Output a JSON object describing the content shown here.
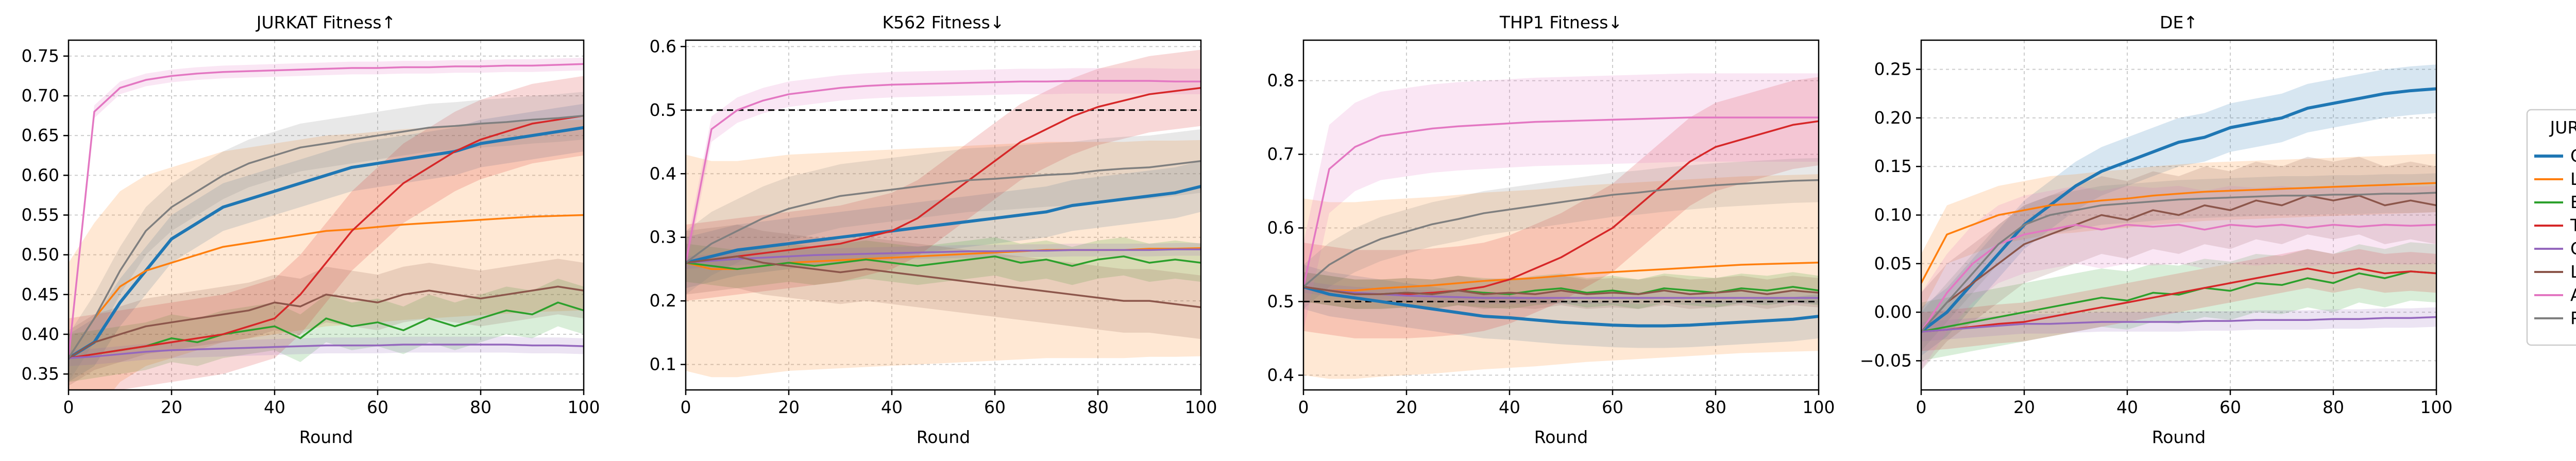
{
  "colors": {
    "Ours": "#1f77b4",
    "Log Barrier": "#ff7f0e",
    "BO": "#2ca02c",
    "TACO": "#d62728",
    "CMA-ES": "#9467bd",
    "Lag PPO": "#8c564b",
    "AdaLead": "#e377c2",
    "PEX": "#7f7f7f"
  },
  "legend": {
    "title": "JURKAT",
    "entries": [
      "Ours",
      "Log Barrier",
      "BO",
      "TACO",
      "CMA-ES",
      "Lag PPO",
      "AdaLead",
      "PEX"
    ]
  },
  "chart_data": [
    {
      "type": "line",
      "title": "JURKAT Fitness↑",
      "xlabel": "Round",
      "ylabel": "",
      "xlim": [
        0,
        100
      ],
      "ylim": [
        0.33,
        0.77
      ],
      "xticks": [
        0,
        20,
        40,
        60,
        80,
        100
      ],
      "yticks": [
        0.35,
        0.4,
        0.45,
        0.5,
        0.55,
        0.6,
        0.65,
        0.7,
        0.75
      ],
      "ytick_labels": [
        "0.35",
        "0.40",
        "0.45",
        "0.50",
        "0.55",
        "0.60",
        "0.65",
        "0.70",
        "0.75"
      ],
      "grid": true,
      "x": [
        0,
        5,
        10,
        15,
        20,
        25,
        30,
        35,
        40,
        45,
        50,
        55,
        60,
        65,
        70,
        75,
        80,
        85,
        90,
        95,
        100
      ],
      "series": [
        {
          "name": "Ours",
          "values": [
            0.37,
            0.39,
            0.44,
            0.48,
            0.52,
            0.54,
            0.56,
            0.57,
            0.58,
            0.59,
            0.6,
            0.61,
            0.615,
            0.62,
            0.625,
            0.63,
            0.64,
            0.645,
            0.65,
            0.655,
            0.66
          ],
          "band": 0.03
        },
        {
          "name": "Log Barrier",
          "values": [
            0.37,
            0.42,
            0.46,
            0.48,
            0.49,
            0.5,
            0.51,
            0.515,
            0.52,
            0.525,
            0.53,
            0.532,
            0.535,
            0.538,
            0.54,
            0.542,
            0.544,
            0.546,
            0.548,
            0.549,
            0.55
          ],
          "band": 0.12
        },
        {
          "name": "BO",
          "values": [
            0.37,
            0.375,
            0.38,
            0.385,
            0.395,
            0.39,
            0.4,
            0.405,
            0.41,
            0.395,
            0.42,
            0.41,
            0.415,
            0.405,
            0.42,
            0.41,
            0.42,
            0.43,
            0.425,
            0.44,
            0.43
          ],
          "band": 0.03
        },
        {
          "name": "TACO",
          "values": [
            0.37,
            0.375,
            0.38,
            0.385,
            0.39,
            0.395,
            0.4,
            0.41,
            0.42,
            0.45,
            0.49,
            0.53,
            0.56,
            0.59,
            0.61,
            0.63,
            0.645,
            0.655,
            0.665,
            0.67,
            0.675
          ],
          "band": 0.05
        },
        {
          "name": "CMA-ES",
          "values": [
            0.37,
            0.372,
            0.375,
            0.378,
            0.38,
            0.381,
            0.382,
            0.383,
            0.384,
            0.385,
            0.386,
            0.386,
            0.386,
            0.387,
            0.387,
            0.387,
            0.387,
            0.387,
            0.386,
            0.386,
            0.385
          ],
          "band": 0.01
        },
        {
          "name": "Lag PPO",
          "values": [
            0.37,
            0.39,
            0.4,
            0.41,
            0.415,
            0.42,
            0.425,
            0.43,
            0.44,
            0.435,
            0.45,
            0.445,
            0.44,
            0.45,
            0.455,
            0.45,
            0.445,
            0.45,
            0.455,
            0.46,
            0.455
          ],
          "band": 0.035
        },
        {
          "name": "AdaLead",
          "values": [
            0.37,
            0.68,
            0.71,
            0.72,
            0.725,
            0.728,
            0.73,
            0.731,
            0.732,
            0.733,
            0.734,
            0.735,
            0.735,
            0.736,
            0.736,
            0.737,
            0.737,
            0.738,
            0.738,
            0.739,
            0.74
          ],
          "band": 0.008
        },
        {
          "name": "PEX",
          "values": [
            0.37,
            0.42,
            0.48,
            0.53,
            0.56,
            0.58,
            0.6,
            0.615,
            0.625,
            0.635,
            0.64,
            0.645,
            0.65,
            0.655,
            0.66,
            0.662,
            0.665,
            0.667,
            0.67,
            0.672,
            0.675
          ],
          "band": 0.03
        }
      ]
    },
    {
      "type": "line",
      "title": "K562 Fitness↓",
      "xlabel": "Round",
      "ylabel": "",
      "xlim": [
        0,
        100
      ],
      "ylim": [
        0.06,
        0.61
      ],
      "xticks": [
        0,
        20,
        40,
        60,
        80,
        100
      ],
      "yticks": [
        0.1,
        0.2,
        0.3,
        0.4,
        0.5,
        0.6
      ],
      "ytick_labels": [
        "0.1",
        "0.2",
        "0.3",
        "0.4",
        "0.5",
        "0.6"
      ],
      "grid": true,
      "hline": 0.5,
      "x": [
        0,
        5,
        10,
        15,
        20,
        25,
        30,
        35,
        40,
        45,
        50,
        55,
        60,
        65,
        70,
        75,
        80,
        85,
        90,
        95,
        100
      ],
      "series": [
        {
          "name": "Ours",
          "values": [
            0.26,
            0.27,
            0.28,
            0.285,
            0.29,
            0.295,
            0.3,
            0.305,
            0.31,
            0.315,
            0.32,
            0.325,
            0.33,
            0.335,
            0.34,
            0.35,
            0.355,
            0.36,
            0.365,
            0.37,
            0.38
          ],
          "band": 0.04
        },
        {
          "name": "Log Barrier",
          "values": [
            0.26,
            0.25,
            0.25,
            0.255,
            0.26,
            0.262,
            0.264,
            0.266,
            0.268,
            0.27,
            0.272,
            0.274,
            0.276,
            0.278,
            0.28,
            0.28,
            0.28,
            0.28,
            0.282,
            0.282,
            0.283
          ],
          "band": 0.17
        },
        {
          "name": "BO",
          "values": [
            0.26,
            0.255,
            0.25,
            0.255,
            0.26,
            0.255,
            0.26,
            0.265,
            0.26,
            0.255,
            0.26,
            0.265,
            0.27,
            0.26,
            0.265,
            0.255,
            0.265,
            0.27,
            0.26,
            0.265,
            0.26
          ],
          "band": 0.03
        },
        {
          "name": "TACO",
          "values": [
            0.26,
            0.265,
            0.27,
            0.275,
            0.28,
            0.285,
            0.29,
            0.3,
            0.31,
            0.33,
            0.36,
            0.39,
            0.42,
            0.45,
            0.47,
            0.49,
            0.505,
            0.515,
            0.525,
            0.53,
            0.535
          ],
          "band": 0.06
        },
        {
          "name": "CMA-ES",
          "values": [
            0.26,
            0.263,
            0.266,
            0.268,
            0.27,
            0.272,
            0.273,
            0.274,
            0.275,
            0.276,
            0.277,
            0.278,
            0.278,
            0.279,
            0.279,
            0.28,
            0.28,
            0.28,
            0.28,
            0.281,
            0.281
          ],
          "band": 0.01
        },
        {
          "name": "Lag PPO",
          "values": [
            0.26,
            0.265,
            0.27,
            0.26,
            0.255,
            0.25,
            0.245,
            0.25,
            0.245,
            0.24,
            0.235,
            0.23,
            0.225,
            0.22,
            0.215,
            0.21,
            0.205,
            0.2,
            0.2,
            0.195,
            0.19
          ],
          "band": 0.05
        },
        {
          "name": "AdaLead",
          "values": [
            0.26,
            0.47,
            0.5,
            0.515,
            0.525,
            0.53,
            0.535,
            0.538,
            0.54,
            0.541,
            0.542,
            0.543,
            0.544,
            0.545,
            0.545,
            0.546,
            0.546,
            0.546,
            0.546,
            0.545,
            0.545
          ],
          "band": 0.02
        },
        {
          "name": "PEX",
          "values": [
            0.26,
            0.29,
            0.31,
            0.33,
            0.345,
            0.355,
            0.365,
            0.37,
            0.375,
            0.38,
            0.385,
            0.39,
            0.392,
            0.395,
            0.398,
            0.4,
            0.405,
            0.408,
            0.41,
            0.415,
            0.42
          ],
          "band": 0.05
        }
      ]
    },
    {
      "type": "line",
      "title": "THP1 Fitness↓",
      "xlabel": "Round",
      "ylabel": "",
      "xlim": [
        0,
        100
      ],
      "ylim": [
        0.38,
        0.855
      ],
      "xticks": [
        0,
        20,
        40,
        60,
        80,
        100
      ],
      "yticks": [
        0.4,
        0.5,
        0.6,
        0.7,
        0.8
      ],
      "ytick_labels": [
        "0.4",
        "0.5",
        "0.6",
        "0.7",
        "0.8"
      ],
      "grid": true,
      "hline": 0.5,
      "x": [
        0,
        5,
        10,
        15,
        20,
        25,
        30,
        35,
        40,
        45,
        50,
        55,
        60,
        65,
        70,
        75,
        80,
        85,
        90,
        95,
        100
      ],
      "series": [
        {
          "name": "Ours",
          "values": [
            0.52,
            0.51,
            0.505,
            0.5,
            0.495,
            0.49,
            0.485,
            0.48,
            0.478,
            0.475,
            0.472,
            0.47,
            0.468,
            0.467,
            0.467,
            0.468,
            0.47,
            0.472,
            0.474,
            0.476,
            0.48
          ],
          "band": 0.03
        },
        {
          "name": "Log Barrier",
          "values": [
            0.52,
            0.515,
            0.515,
            0.518,
            0.52,
            0.522,
            0.525,
            0.528,
            0.53,
            0.532,
            0.535,
            0.538,
            0.54,
            0.542,
            0.544,
            0.546,
            0.548,
            0.55,
            0.551,
            0.552,
            0.553
          ],
          "band": 0.12
        },
        {
          "name": "BO",
          "values": [
            0.52,
            0.515,
            0.51,
            0.51,
            0.512,
            0.51,
            0.515,
            0.512,
            0.51,
            0.515,
            0.518,
            0.512,
            0.515,
            0.51,
            0.518,
            0.515,
            0.512,
            0.518,
            0.515,
            0.52,
            0.515
          ],
          "band": 0.02
        },
        {
          "name": "TACO",
          "values": [
            0.52,
            0.515,
            0.51,
            0.51,
            0.51,
            0.512,
            0.515,
            0.52,
            0.53,
            0.545,
            0.56,
            0.58,
            0.6,
            0.63,
            0.66,
            0.69,
            0.71,
            0.72,
            0.73,
            0.74,
            0.745
          ],
          "band": 0.06
        },
        {
          "name": "CMA-ES",
          "values": [
            0.52,
            0.515,
            0.512,
            0.51,
            0.508,
            0.507,
            0.506,
            0.505,
            0.505,
            0.505,
            0.505,
            0.505,
            0.505,
            0.505,
            0.505,
            0.505,
            0.505,
            0.505,
            0.505,
            0.505,
            0.505
          ],
          "band": 0.008
        },
        {
          "name": "Lag PPO",
          "values": [
            0.52,
            0.515,
            0.51,
            0.51,
            0.512,
            0.51,
            0.515,
            0.51,
            0.512,
            0.51,
            0.515,
            0.51,
            0.512,
            0.51,
            0.515,
            0.51,
            0.512,
            0.515,
            0.51,
            0.515,
            0.512
          ],
          "band": 0.02
        },
        {
          "name": "AdaLead",
          "values": [
            0.52,
            0.68,
            0.71,
            0.725,
            0.73,
            0.735,
            0.738,
            0.74,
            0.742,
            0.744,
            0.745,
            0.746,
            0.747,
            0.748,
            0.749,
            0.75,
            0.75,
            0.75,
            0.75,
            0.75,
            0.75
          ],
          "band": 0.06
        },
        {
          "name": "PEX",
          "values": [
            0.52,
            0.55,
            0.57,
            0.585,
            0.595,
            0.605,
            0.612,
            0.62,
            0.625,
            0.63,
            0.635,
            0.64,
            0.645,
            0.648,
            0.652,
            0.655,
            0.658,
            0.66,
            0.662,
            0.664,
            0.665
          ],
          "band": 0.03
        }
      ]
    },
    {
      "type": "line",
      "title": "DE↑",
      "xlabel": "Round",
      "ylabel": "",
      "xlim": [
        0,
        100
      ],
      "ylim": [
        -0.08,
        0.28
      ],
      "xticks": [
        0,
        20,
        40,
        60,
        80,
        100
      ],
      "yticks": [
        -0.05,
        0.0,
        0.05,
        0.1,
        0.15,
        0.2,
        0.25
      ],
      "ytick_labels": [
        "−0.05",
        "0.00",
        "0.05",
        "0.10",
        "0.15",
        "0.20",
        "0.25"
      ],
      "grid": true,
      "x": [
        0,
        5,
        10,
        15,
        20,
        25,
        30,
        35,
        40,
        45,
        50,
        55,
        60,
        65,
        70,
        75,
        80,
        85,
        90,
        95,
        100
      ],
      "series": [
        {
          "name": "Ours",
          "values": [
            -0.02,
            0.0,
            0.03,
            0.06,
            0.09,
            0.11,
            0.13,
            0.145,
            0.155,
            0.165,
            0.175,
            0.18,
            0.19,
            0.195,
            0.2,
            0.21,
            0.215,
            0.22,
            0.225,
            0.228,
            0.23
          ],
          "band": 0.025
        },
        {
          "name": "Log Barrier",
          "values": [
            0.03,
            0.08,
            0.09,
            0.1,
            0.105,
            0.11,
            0.112,
            0.115,
            0.117,
            0.12,
            0.122,
            0.124,
            0.125,
            0.126,
            0.127,
            0.128,
            0.129,
            0.13,
            0.131,
            0.132,
            0.133
          ],
          "band": 0.03
        },
        {
          "name": "BO",
          "values": [
            -0.02,
            -0.015,
            -0.01,
            -0.005,
            0.0,
            0.005,
            0.01,
            0.015,
            0.012,
            0.02,
            0.018,
            0.025,
            0.022,
            0.03,
            0.028,
            0.035,
            0.03,
            0.04,
            0.035,
            0.042,
            0.04
          ],
          "band": 0.03
        },
        {
          "name": "TACO",
          "values": [
            -0.02,
            -0.018,
            -0.015,
            -0.012,
            -0.01,
            -0.005,
            0.0,
            0.005,
            0.01,
            0.015,
            0.02,
            0.025,
            0.03,
            0.035,
            0.04,
            0.045,
            0.04,
            0.045,
            0.04,
            0.042,
            0.04
          ],
          "band": 0.02
        },
        {
          "name": "CMA-ES",
          "values": [
            -0.02,
            -0.018,
            -0.016,
            -0.014,
            -0.012,
            -0.012,
            -0.011,
            -0.01,
            -0.01,
            -0.01,
            -0.01,
            -0.009,
            -0.009,
            -0.008,
            -0.008,
            -0.008,
            -0.007,
            -0.007,
            -0.006,
            -0.006,
            -0.005
          ],
          "band": 0.01
        },
        {
          "name": "Lag PPO",
          "values": [
            -0.02,
            0.01,
            0.03,
            0.05,
            0.07,
            0.08,
            0.09,
            0.1,
            0.095,
            0.105,
            0.1,
            0.11,
            0.105,
            0.115,
            0.11,
            0.12,
            0.115,
            0.12,
            0.11,
            0.115,
            0.11
          ],
          "band": 0.04
        },
        {
          "name": "AdaLead",
          "values": [
            -0.02,
            0.02,
            0.05,
            0.07,
            0.08,
            0.085,
            0.09,
            0.085,
            0.09,
            0.088,
            0.09,
            0.085,
            0.09,
            0.088,
            0.09,
            0.087,
            0.09,
            0.088,
            0.09,
            0.089,
            0.09
          ],
          "band": 0.04
        },
        {
          "name": "PEX",
          "values": [
            -0.02,
            0.01,
            0.04,
            0.07,
            0.09,
            0.1,
            0.105,
            0.11,
            0.112,
            0.114,
            0.116,
            0.117,
            0.118,
            0.119,
            0.12,
            0.12,
            0.121,
            0.121,
            0.122,
            0.122,
            0.123
          ],
          "band": 0.02
        }
      ]
    }
  ]
}
